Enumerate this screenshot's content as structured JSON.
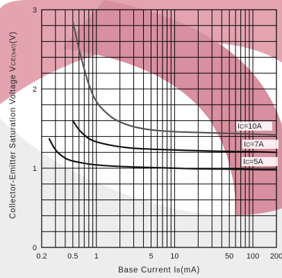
{
  "chart_data": {
    "type": "line",
    "xscale": "log",
    "xlim": [
      0.2,
      200
    ],
    "ylim": [
      0,
      3
    ],
    "x_ticks": [
      {
        "v": 0.2,
        "label": "0.2"
      },
      {
        "v": 0.5,
        "label": "0.5"
      },
      {
        "v": 1,
        "label": "1"
      },
      {
        "v": 5,
        "label": "5"
      },
      {
        "v": 10,
        "label": "10"
      },
      {
        "v": 50,
        "label": "50"
      },
      {
        "v": 100,
        "label": "100"
      },
      {
        "v": 200,
        "label": "200"
      }
    ],
    "y_ticks": [
      {
        "v": 0,
        "label": "0"
      },
      {
        "v": 1,
        "label": "1"
      },
      {
        "v": 2,
        "label": "2"
      },
      {
        "v": 3,
        "label": "3"
      }
    ],
    "xlabel_main": "Base Current I",
    "xlabel_sub": "B",
    "xlabel_unit": "(mA)",
    "ylabel_main": "Collector-Emitter Saturation Voltage V",
    "ylabel_sub": "CE(sat)",
    "ylabel_unit": "(V)",
    "grid": true,
    "series": [
      {
        "name_main": "I",
        "name_sub": "C",
        "name_rest": "=10A",
        "color": "#555555",
        "x": [
          0.5,
          0.6,
          0.7,
          0.8,
          1,
          1.5,
          2,
          3,
          5,
          10,
          20,
          50,
          100,
          200
        ],
        "y": [
          2.85,
          2.5,
          2.25,
          2.05,
          1.82,
          1.65,
          1.58,
          1.52,
          1.48,
          1.46,
          1.45,
          1.44,
          1.43,
          1.42
        ]
      },
      {
        "name_main": "I",
        "name_sub": "C",
        "name_rest": "=7A",
        "color": "#111111",
        "x": [
          0.5,
          0.6,
          0.7,
          0.8,
          1,
          1.5,
          2,
          3,
          5,
          10,
          20,
          50,
          100,
          200
        ],
        "y": [
          1.6,
          1.48,
          1.42,
          1.37,
          1.33,
          1.29,
          1.27,
          1.25,
          1.24,
          1.23,
          1.22,
          1.21,
          1.21,
          1.2
        ]
      },
      {
        "name_main": "I",
        "name_sub": "C",
        "name_rest": "=5A",
        "color": "#111111",
        "x": [
          0.25,
          0.3,
          0.4,
          0.5,
          0.7,
          1,
          2,
          5,
          10,
          20,
          50,
          100,
          200
        ],
        "y": [
          1.37,
          1.22,
          1.12,
          1.09,
          1.06,
          1.04,
          1.02,
          1.01,
          1.0,
          0.99,
          0.99,
          0.98,
          0.98
        ]
      }
    ]
  }
}
